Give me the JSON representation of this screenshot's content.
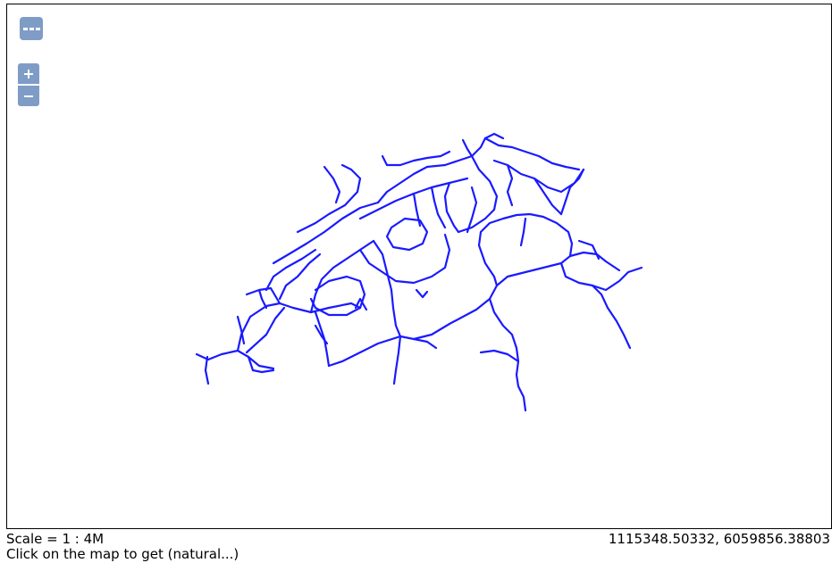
{
  "map": {
    "line_color": "#1a1aff",
    "scale_text": "Scale = 1 : 4M",
    "coordinates_text": "1115348.50332, 6059856.38803",
    "hint_text": "Click on the map to get (natural...)"
  },
  "controls": {
    "layer_switcher_icon": "layer-switcher-icon",
    "zoom_in_icon": "plus-icon",
    "zoom_out_icon": "minus-icon"
  }
}
